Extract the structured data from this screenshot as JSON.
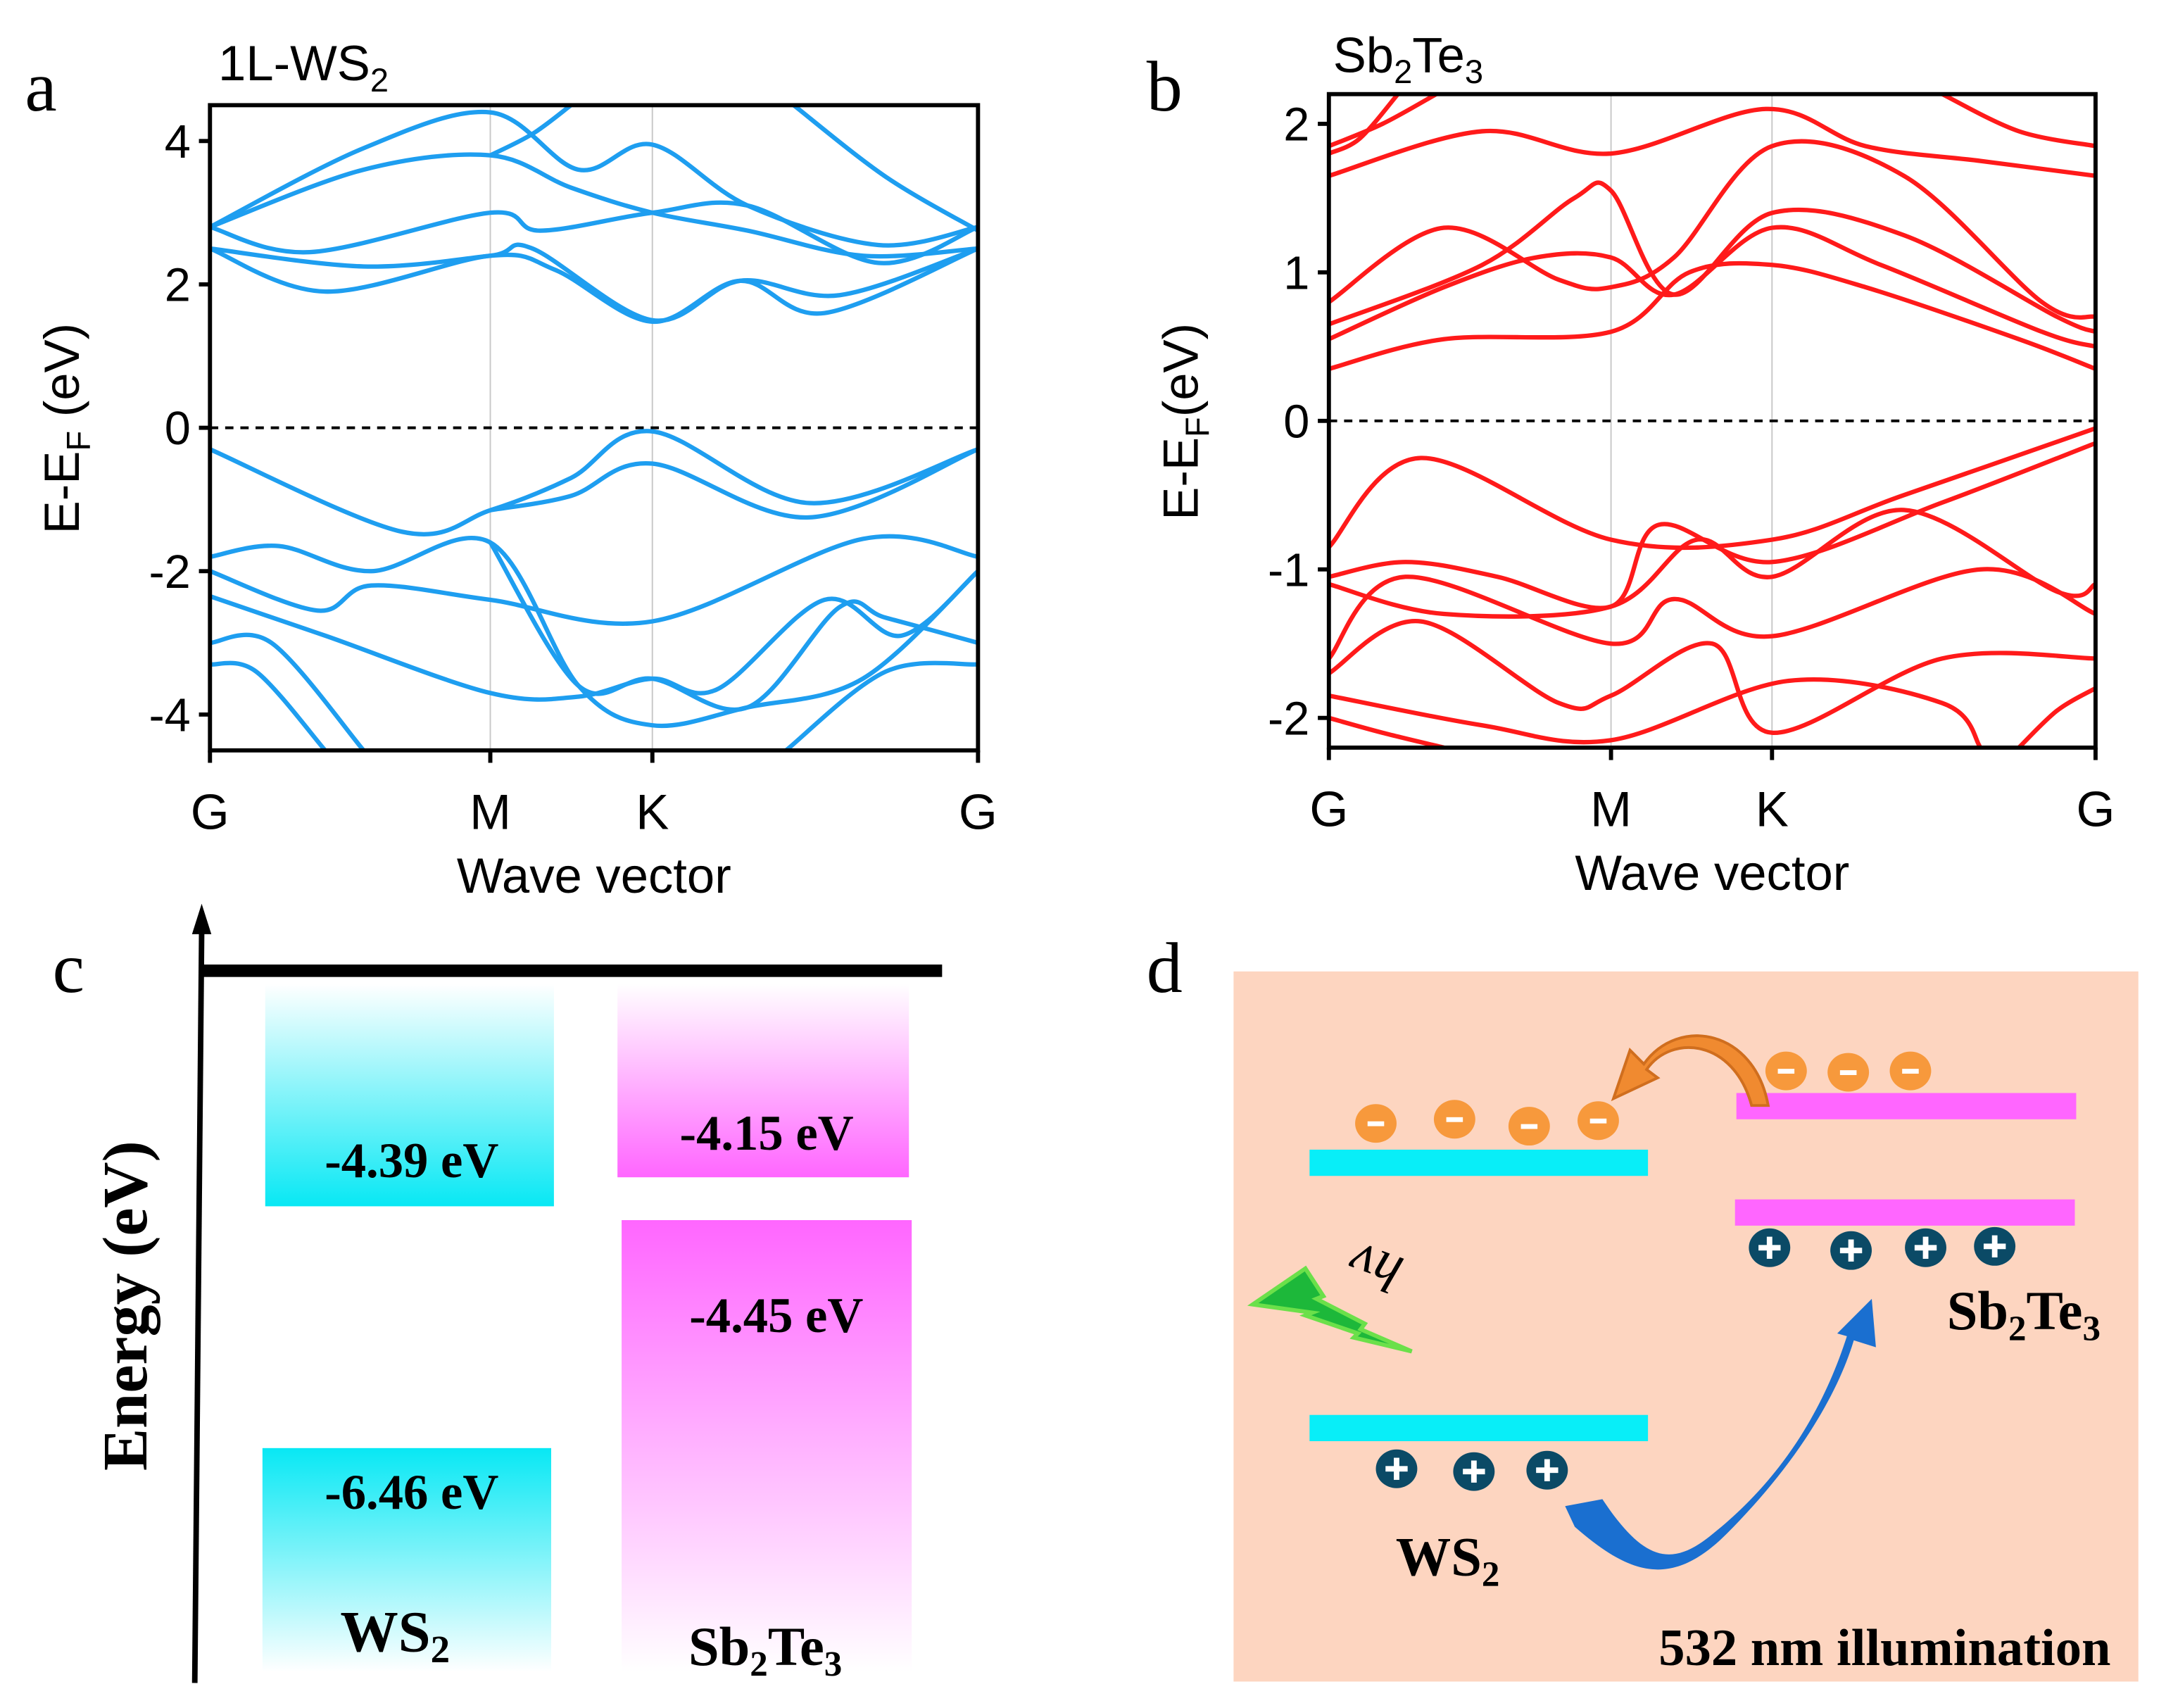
{
  "panel_labels": {
    "a": "a",
    "b": "b",
    "c": "c",
    "d": "d"
  },
  "colors": {
    "ws2_band": "#1e9ef0",
    "sb2te3_band": "#ff1a1a",
    "cyan": "#08e8f4",
    "magenta": "#ff66ff",
    "panel_d_bg": "#fdd5c0",
    "electron": "#f7993c",
    "hole": "#0b4a66",
    "transfer_arrow": "#1565c0",
    "electron_arrow": "#e07b2a",
    "light": "#1db83a"
  },
  "chart_data": [
    {
      "type": "line",
      "title": "1L-WS2",
      "xlabel": "Wave vector",
      "ylabel": "E-EF (eV)",
      "ylim": [
        -4.5,
        4.5
      ],
      "yticks": [
        4,
        2,
        0,
        -2,
        -4
      ],
      "xticks": [
        {
          "label": "G",
          "k": 0
        },
        {
          "label": "M",
          "k": 0.365
        },
        {
          "label": "K",
          "k": 0.576
        },
        {
          "label": "G",
          "k": 1
        }
      ],
      "fermi_level": 0,
      "series": [
        {
          "name": "CB1",
          "points": [
            [
              0,
              2.5
            ],
            [
              0.15,
              1.9
            ],
            [
              0.365,
              2.4
            ],
            [
              0.45,
              2.2
            ],
            [
              0.576,
              1.48
            ],
            [
              0.69,
              2.05
            ],
            [
              0.8,
              1.6
            ],
            [
              1,
              2.5
            ]
          ]
        },
        {
          "name": "CB2",
          "points": [
            [
              0,
              2.5
            ],
            [
              0.2,
              2.25
            ],
            [
              0.365,
              2.4
            ],
            [
              0.42,
              2.5
            ],
            [
              0.576,
              1.5
            ],
            [
              0.69,
              2.05
            ],
            [
              0.82,
              1.85
            ],
            [
              1,
              2.5
            ]
          ]
        },
        {
          "name": "CB3",
          "points": [
            [
              0,
              2.8
            ],
            [
              0.13,
              2.45
            ],
            [
              0.365,
              3.0
            ],
            [
              0.43,
              2.75
            ],
            [
              0.576,
              3.0
            ],
            [
              0.7,
              3.1
            ],
            [
              0.87,
              2.3
            ],
            [
              1,
              2.8
            ]
          ]
        },
        {
          "name": "CB4",
          "points": [
            [
              0,
              2.8
            ],
            [
              0.2,
              3.6
            ],
            [
              0.365,
              3.8
            ],
            [
              0.47,
              3.35
            ],
            [
              0.576,
              3.0
            ],
            [
              0.7,
              2.75
            ],
            [
              0.85,
              2.4
            ],
            [
              1,
              2.5
            ]
          ]
        },
        {
          "name": "CB5",
          "points": [
            [
              0,
              2.8
            ],
            [
              0.2,
              3.9
            ],
            [
              0.365,
              4.4
            ],
            [
              0.48,
              3.6
            ],
            [
              0.576,
              3.95
            ],
            [
              0.7,
              3.1
            ],
            [
              0.87,
              2.55
            ],
            [
              1,
              2.8
            ]
          ]
        },
        {
          "name": "CB6",
          "points": [
            [
              0.365,
              3.8
            ],
            [
              0.42,
              4.1
            ],
            [
              0.47,
              4.5
            ]
          ]
        },
        {
          "name": "CB7",
          "points": [
            [
              0.76,
              4.5
            ],
            [
              0.88,
              3.5
            ],
            [
              1,
              2.75
            ]
          ]
        },
        {
          "name": "VB1",
          "points": [
            [
              0,
              -0.3
            ],
            [
              0.25,
              -1.45
            ],
            [
              0.365,
              -1.15
            ],
            [
              0.47,
              -0.7
            ],
            [
              0.576,
              -0.05
            ],
            [
              0.78,
              -1.05
            ],
            [
              1,
              -0.3
            ]
          ]
        },
        {
          "name": "VB2",
          "points": [
            [
              0.365,
              -1.15
            ],
            [
              0.47,
              -0.95
            ],
            [
              0.576,
              -0.5
            ],
            [
              0.78,
              -1.25
            ],
            [
              1,
              -0.3
            ]
          ]
        },
        {
          "name": "VB3",
          "points": [
            [
              0,
              -1.8
            ],
            [
              0.09,
              -1.65
            ],
            [
              0.21,
              -2.0
            ],
            [
              0.365,
              -1.6
            ],
            [
              0.48,
              -3.6
            ],
            [
              0.576,
              -4.15
            ],
            [
              0.7,
              -3.9
            ],
            [
              0.85,
              -3.5
            ],
            [
              1,
              -2.0
            ]
          ]
        },
        {
          "name": "VB4",
          "points": [
            [
              0,
              -2.0
            ],
            [
              0.14,
              -2.55
            ],
            [
              0.21,
              -2.2
            ],
            [
              0.365,
              -2.4
            ],
            [
              0.576,
              -2.7
            ],
            [
              0.85,
              -1.55
            ],
            [
              1,
              -1.8
            ]
          ]
        },
        {
          "name": "VB5",
          "points": [
            [
              0,
              -2.35
            ],
            [
              0.15,
              -2.9
            ],
            [
              0.365,
              -3.7
            ],
            [
              0.48,
              -3.75
            ],
            [
              0.576,
              -3.5
            ],
            [
              0.66,
              -3.65
            ],
            [
              0.8,
              -2.4
            ],
            [
              0.9,
              -2.9
            ],
            [
              1,
              -2.0
            ]
          ]
        },
        {
          "name": "VB6",
          "points": [
            [
              0,
              -3.0
            ],
            [
              0.08,
              -3.0
            ],
            [
              0.2,
              -4.5
            ]
          ]
        },
        {
          "name": "VB7",
          "points": [
            [
              0,
              -3.3
            ],
            [
              0.06,
              -3.4
            ],
            [
              0.15,
              -4.5
            ]
          ]
        },
        {
          "name": "VB8",
          "points": [
            [
              0.75,
              -4.5
            ],
            [
              0.88,
              -3.4
            ],
            [
              1,
              -3.3
            ]
          ]
        },
        {
          "name": "VB9",
          "points": [
            [
              0.365,
              -1.6
            ],
            [
              0.48,
              -3.6
            ],
            [
              0.576,
              -3.5
            ],
            [
              0.7,
              -3.9
            ],
            [
              0.82,
              -2.5
            ],
            [
              0.88,
              -2.65
            ],
            [
              1,
              -3.0
            ]
          ]
        }
      ]
    },
    {
      "type": "line",
      "title": "Sb2Te3",
      "xlabel": "Wave vector",
      "ylabel": "E-EF(eV)",
      "ylim": [
        -2.2,
        2.2
      ],
      "yticks": [
        2,
        1,
        0,
        -1,
        -2
      ],
      "xticks": [
        {
          "label": "G",
          "k": 0
        },
        {
          "label": "M",
          "k": 0.368
        },
        {
          "label": "K",
          "k": 0.578
        },
        {
          "label": "G",
          "k": 1
        }
      ],
      "fermi_level": 0,
      "series": [
        {
          "name": "CB1",
          "points": [
            [
              0,
              0.35
            ],
            [
              0.15,
              0.55
            ],
            [
              0.368,
              0.6
            ],
            [
              0.47,
              1.0
            ],
            [
              0.578,
              1.05
            ],
            [
              0.7,
              0.9
            ],
            [
              0.9,
              0.55
            ],
            [
              1,
              0.35
            ]
          ]
        },
        {
          "name": "CB2",
          "points": [
            [
              0,
              0.55
            ],
            [
              0.15,
              0.9
            ],
            [
              0.27,
              1.1
            ],
            [
              0.368,
              1.1
            ],
            [
              0.45,
              0.85
            ],
            [
              0.578,
              1.3
            ],
            [
              0.72,
              1.05
            ],
            [
              0.93,
              0.6
            ],
            [
              1,
              0.5
            ]
          ]
        },
        {
          "name": "CB3",
          "points": [
            [
              0,
              0.65
            ],
            [
              0.2,
              1.05
            ],
            [
              0.32,
              1.5
            ],
            [
              0.368,
              1.55
            ],
            [
              0.45,
              0.85
            ],
            [
              0.578,
              1.4
            ],
            [
              0.75,
              1.25
            ],
            [
              0.95,
              0.7
            ],
            [
              1,
              0.6
            ]
          ]
        },
        {
          "name": "CB4",
          "points": [
            [
              0,
              0.8
            ],
            [
              0.15,
              1.3
            ],
            [
              0.3,
              0.95
            ],
            [
              0.368,
              0.9
            ],
            [
              0.45,
              1.1
            ],
            [
              0.578,
              1.85
            ],
            [
              0.75,
              1.65
            ],
            [
              0.93,
              0.8
            ],
            [
              1,
              0.7
            ]
          ]
        },
        {
          "name": "CB5",
          "points": [
            [
              0,
              1.65
            ],
            [
              0.2,
              1.95
            ],
            [
              0.368,
              1.8
            ],
            [
              0.57,
              2.1
            ],
            [
              0.7,
              1.85
            ],
            [
              0.85,
              1.75
            ],
            [
              1,
              1.65
            ]
          ]
        },
        {
          "name": "CB6",
          "points": [
            [
              0,
              1.8
            ],
            [
              0.04,
              1.9
            ],
            [
              0.09,
              2.2
            ]
          ]
        },
        {
          "name": "CB7",
          "points": [
            [
              0,
              1.85
            ],
            [
              0.07,
              2.0
            ],
            [
              0.14,
              2.2
            ]
          ]
        },
        {
          "name": "CB8",
          "points": [
            [
              0.8,
              2.2
            ],
            [
              0.9,
              1.95
            ],
            [
              1,
              1.85
            ]
          ]
        },
        {
          "name": "VB1",
          "points": [
            [
              0,
              -0.85
            ],
            [
              0.12,
              -0.25
            ],
            [
              0.368,
              -0.8
            ],
            [
              0.578,
              -0.8
            ],
            [
              0.75,
              -0.5
            ],
            [
              1,
              -0.05
            ]
          ]
        },
        {
          "name": "VB2",
          "points": [
            [
              0,
              -1.05
            ],
            [
              0.1,
              -0.95
            ],
            [
              0.22,
              -1.05
            ],
            [
              0.368,
              -1.25
            ],
            [
              0.43,
              -0.7
            ],
            [
              0.578,
              -0.95
            ],
            [
              0.8,
              -0.55
            ],
            [
              1,
              -0.15
            ]
          ]
        },
        {
          "name": "VB3",
          "points": [
            [
              0,
              -1.1
            ],
            [
              0.15,
              -1.3
            ],
            [
              0.368,
              -1.25
            ],
            [
              0.48,
              -0.8
            ],
            [
              0.578,
              -1.05
            ],
            [
              0.75,
              -0.6
            ],
            [
              0.95,
              -1.15
            ],
            [
              1,
              -1.1
            ]
          ]
        },
        {
          "name": "VB4",
          "points": [
            [
              0,
              -1.6
            ],
            [
              0.1,
              -1.05
            ],
            [
              0.368,
              -1.5
            ],
            [
              0.45,
              -1.2
            ],
            [
              0.578,
              -1.45
            ],
            [
              0.85,
              -1.0
            ],
            [
              1,
              -1.3
            ]
          ]
        },
        {
          "name": "VB5",
          "points": [
            [
              0,
              -1.7
            ],
            [
              0.12,
              -1.35
            ],
            [
              0.3,
              -1.9
            ],
            [
              0.368,
              -1.85
            ],
            [
              0.5,
              -1.5
            ],
            [
              0.578,
              -2.1
            ],
            [
              0.8,
              -1.6
            ],
            [
              1,
              -1.6
            ]
          ]
        },
        {
          "name": "VB6",
          "points": [
            [
              0,
              -2.0
            ],
            [
              0.07,
              -2.1
            ],
            [
              0.15,
              -2.2
            ]
          ]
        },
        {
          "name": "VB7",
          "points": [
            [
              0.9,
              -2.2
            ],
            [
              0.95,
              -1.95
            ],
            [
              1,
              -1.8
            ]
          ]
        },
        {
          "name": "VB8",
          "points": [
            [
              0,
              -1.85
            ],
            [
              0.2,
              -2.05
            ],
            [
              0.368,
              -2.15
            ],
            [
              0.6,
              -1.75
            ],
            [
              0.8,
              -1.9
            ],
            [
              0.85,
              -2.2
            ]
          ]
        }
      ]
    }
  ],
  "panel_c": {
    "y_axis_label": "Energy (eV)",
    "ws2": {
      "label": "WS",
      "sub": "2",
      "cb": "-4.39 eV",
      "vb": "-6.46 eV"
    },
    "sb2te3": {
      "label_parts": [
        "Sb",
        "2",
        "Te",
        "3"
      ],
      "cb": "-4.15 eV",
      "vb": "-4.45 eV"
    }
  },
  "panel_d": {
    "photon": "hν",
    "ws2_label": "WS",
    "ws2_sub": "2",
    "sb2te3_parts": [
      "Sb",
      "2",
      "Te",
      "3"
    ],
    "illumination": "532 nm illumination",
    "electron_sign": "-",
    "hole_sign": "+"
  }
}
